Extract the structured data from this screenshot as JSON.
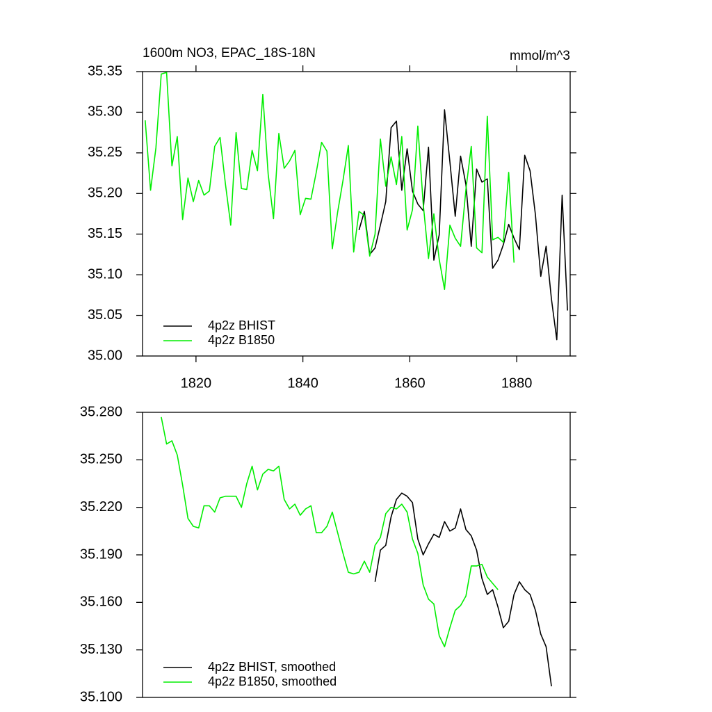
{
  "chart_data": [
    {
      "type": "line",
      "title": "1600m NO3, EPAC_18S-18N",
      "units": "mmol/m^3",
      "xlim": [
        1810,
        1890
      ],
      "xticks": [
        1820,
        1840,
        1860,
        1880
      ],
      "ylim": [
        35.0,
        35.35
      ],
      "yticks": [
        {
          "value": 35.0,
          "label": "35.00"
        },
        35.05,
        {
          "value": 35.1,
          "label": "35.10"
        },
        35.15,
        {
          "value": 35.2,
          "label": "35.20"
        },
        35.25,
        {
          "value": 35.3,
          "label": "35.30"
        },
        35.35
      ],
      "legend": "lower left",
      "series": [
        {
          "name": "4p2z BHIST",
          "color": "#000000",
          "x": [
            1850.5,
            1851.5,
            1852.5,
            1853.5,
            1854.5,
            1855.5,
            1856.5,
            1857.5,
            1858.5,
            1859.5,
            1860.5,
            1861.5,
            1862.5,
            1863.5,
            1864.5,
            1865.5,
            1866.5,
            1867.5,
            1868.5,
            1869.5,
            1870.5,
            1871.5,
            1872.5,
            1873.5,
            1874.5,
            1875.5,
            1876.5,
            1877.5,
            1878.5,
            1879.5,
            1880.5,
            1881.5,
            1882.5,
            1883.5,
            1884.5,
            1885.5,
            1886.5,
            1887.5,
            1888.5,
            1889.5
          ],
          "values": [
            35.155,
            35.178,
            35.125,
            35.133,
            35.161,
            35.19,
            35.281,
            35.289,
            35.204,
            35.255,
            35.203,
            35.187,
            35.179,
            35.257,
            35.118,
            35.149,
            35.303,
            35.239,
            35.172,
            35.246,
            35.211,
            35.135,
            35.23,
            35.214,
            35.218,
            35.108,
            35.118,
            35.137,
            35.162,
            35.145,
            35.131,
            35.247,
            35.228,
            35.174,
            35.098,
            35.135,
            35.07,
            35.02,
            35.198,
            35.056
          ]
        },
        {
          "name": "4p2z B1850",
          "color": "#00ee00",
          "x": [
            1810.5,
            1811.5,
            1812.5,
            1813.5,
            1814.5,
            1815.5,
            1816.5,
            1817.5,
            1818.5,
            1819.5,
            1820.5,
            1821.5,
            1822.5,
            1823.5,
            1824.5,
            1825.5,
            1826.5,
            1827.5,
            1828.5,
            1829.5,
            1830.5,
            1831.5,
            1832.5,
            1833.5,
            1834.5,
            1835.5,
            1836.5,
            1837.5,
            1838.5,
            1839.5,
            1840.5,
            1841.5,
            1842.5,
            1843.5,
            1844.5,
            1845.5,
            1846.5,
            1847.5,
            1848.5,
            1849.5,
            1850.5,
            1851.5,
            1852.5,
            1853.5,
            1854.5,
            1855.5,
            1856.5,
            1857.5,
            1858.5,
            1859.5,
            1860.5,
            1861.5,
            1862.5,
            1863.5,
            1864.5,
            1865.5,
            1866.5,
            1867.5,
            1868.5,
            1869.5,
            1870.5,
            1871.5,
            1872.5,
            1873.5,
            1874.5,
            1875.5,
            1876.5,
            1877.5,
            1878.5,
            1879.5
          ],
          "values": [
            35.29,
            35.204,
            35.256,
            35.347,
            35.349,
            35.234,
            35.27,
            35.168,
            35.219,
            35.19,
            35.216,
            35.198,
            35.203,
            35.258,
            35.269,
            35.212,
            35.161,
            35.275,
            35.206,
            35.205,
            35.253,
            35.228,
            35.322,
            35.224,
            35.169,
            35.274,
            35.231,
            35.24,
            35.253,
            35.174,
            35.194,
            35.193,
            35.226,
            35.263,
            35.252,
            35.132,
            35.177,
            35.216,
            35.259,
            35.128,
            35.178,
            35.173,
            35.123,
            35.15,
            35.267,
            35.209,
            35.245,
            35.211,
            35.27,
            35.155,
            35.18,
            35.283,
            35.188,
            35.12,
            35.175,
            35.119,
            35.082,
            35.161,
            35.145,
            35.135,
            35.205,
            35.258,
            35.133,
            35.127,
            35.295,
            35.143,
            35.146,
            35.14,
            35.226,
            35.115
          ]
        }
      ]
    },
    {
      "type": "line",
      "xlim": [
        1810,
        1890
      ],
      "ylim": [
        35.1,
        35.28
      ],
      "yticks": [
        {
          "value": 35.1,
          "label": "35.100"
        },
        {
          "value": 35.13,
          "label": "35.130"
        },
        {
          "value": 35.16,
          "label": "35.160"
        },
        {
          "value": 35.19,
          "label": "35.190"
        },
        {
          "value": 35.22,
          "label": "35.220"
        },
        {
          "value": 35.25,
          "label": "35.250"
        },
        {
          "value": 35.28,
          "label": "35.280"
        }
      ],
      "legend": "lower left",
      "series": [
        {
          "name": "4p2z BHIST, smoothed",
          "color": "#000000",
          "x": [
            1853.5,
            1854.5,
            1855.5,
            1856.5,
            1857.5,
            1858.5,
            1859.5,
            1860.5,
            1861.5,
            1862.5,
            1863.5,
            1864.5,
            1865.5,
            1866.5,
            1867.5,
            1868.5,
            1869.5,
            1870.5,
            1871.5,
            1872.5,
            1873.5,
            1874.5,
            1875.5,
            1876.5,
            1877.5,
            1878.5,
            1879.5,
            1880.5,
            1881.5,
            1882.5,
            1883.5,
            1884.5,
            1885.5,
            1886.5
          ],
          "values": [
            35.173,
            35.193,
            35.196,
            35.214,
            35.225,
            35.229,
            35.227,
            35.223,
            35.2,
            35.19,
            35.197,
            35.203,
            35.201,
            35.211,
            35.205,
            35.207,
            35.219,
            35.206,
            35.202,
            35.193,
            35.175,
            35.165,
            35.168,
            35.157,
            35.144,
            35.148,
            35.165,
            35.173,
            35.168,
            35.165,
            35.155,
            35.14,
            35.132,
            35.107
          ]
        },
        {
          "name": "4p2z B1850, smoothed",
          "color": "#00ee00",
          "x": [
            1813.5,
            1814.5,
            1815.5,
            1816.5,
            1817.5,
            1818.5,
            1819.5,
            1820.5,
            1821.5,
            1822.5,
            1823.5,
            1824.5,
            1825.5,
            1826.5,
            1827.5,
            1828.5,
            1829.5,
            1830.5,
            1831.5,
            1832.5,
            1833.5,
            1834.5,
            1835.5,
            1836.5,
            1837.5,
            1838.5,
            1839.5,
            1840.5,
            1841.5,
            1842.5,
            1843.5,
            1844.5,
            1845.5,
            1846.5,
            1847.5,
            1848.5,
            1849.5,
            1850.5,
            1851.5,
            1852.5,
            1853.5,
            1854.5,
            1855.5,
            1856.5,
            1857.5,
            1858.5,
            1859.5,
            1860.5,
            1861.5,
            1862.5,
            1863.5,
            1864.5,
            1865.5,
            1866.5,
            1867.5,
            1868.5,
            1869.5,
            1870.5,
            1871.5,
            1872.5,
            1873.5,
            1874.5,
            1875.5,
            1876.5
          ],
          "values": [
            35.277,
            35.26,
            35.262,
            35.253,
            35.234,
            35.213,
            35.208,
            35.207,
            35.221,
            35.221,
            35.217,
            35.226,
            35.227,
            35.227,
            35.227,
            35.22,
            35.235,
            35.246,
            35.231,
            35.241,
            35.244,
            35.243,
            35.246,
            35.225,
            35.219,
            35.222,
            35.215,
            35.219,
            35.221,
            35.204,
            35.204,
            35.208,
            35.217,
            35.204,
            35.191,
            35.179,
            35.178,
            35.179,
            35.186,
            35.179,
            35.196,
            35.201,
            35.216,
            35.22,
            35.219,
            35.222,
            35.217,
            35.2,
            35.191,
            35.171,
            35.162,
            35.159,
            35.139,
            35.132,
            35.144,
            35.155,
            35.158,
            35.164,
            35.183,
            35.183,
            35.184,
            35.176,
            35.172,
            35.168
          ]
        }
      ]
    }
  ]
}
